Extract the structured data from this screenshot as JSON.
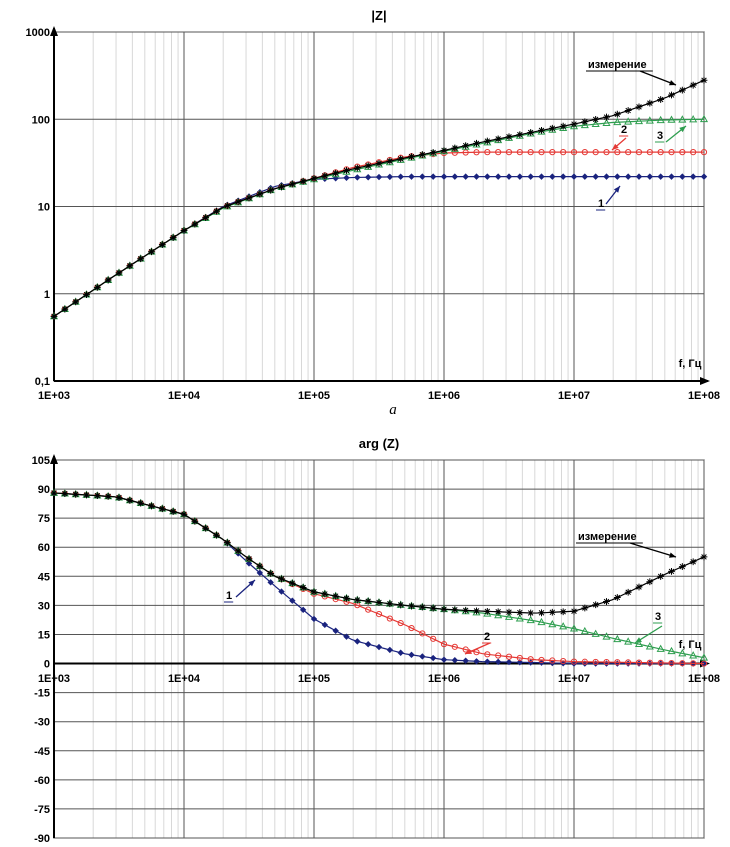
{
  "chart_data": [
    {
      "type": "line",
      "title": "|Z|",
      "xlabel": "f, Гц",
      "ylabel": "",
      "x_scale": "log",
      "y_scale": "log",
      "xlim": [
        1000,
        100000000
      ],
      "ylim": [
        0.1,
        1000
      ],
      "x_tick_labels": [
        "1E+03",
        "1E+04",
        "1E+05",
        "1E+06",
        "1E+07",
        "1E+08"
      ],
      "y_tick_labels": [
        "0,1",
        "1",
        "10",
        "100",
        "1000"
      ],
      "grid": true,
      "sublabel": "a",
      "series": [
        {
          "name": "измерение",
          "color": "#000000",
          "marker": "star",
          "x": [
            1000,
            3000,
            10000,
            20000,
            50000,
            100000,
            200000,
            500000,
            1000000,
            2000000,
            5000000,
            10000000,
            20000000,
            50000000,
            100000000
          ],
          "y": [
            0.55,
            1.65,
            5.3,
            9.8,
            16,
            21,
            27,
            36,
            44,
            55,
            72,
            88,
            110,
            175,
            280
          ]
        },
        {
          "name": "1",
          "color": "#1a237e",
          "marker": "diamond",
          "x": [
            1000,
            3000,
            10000,
            20000,
            50000,
            100000,
            200000,
            500000,
            1000000,
            10000000,
            100000000
          ],
          "y": [
            0.55,
            1.65,
            5.3,
            10,
            17,
            20.5,
            21.5,
            22,
            22,
            22,
            22
          ]
        },
        {
          "name": "2",
          "color": "#e53935",
          "marker": "circle",
          "x": [
            1000,
            3000,
            10000,
            20000,
            50000,
            100000,
            200000,
            500000,
            1000000,
            2000000,
            10000000,
            100000000
          ],
          "y": [
            0.55,
            1.65,
            5.3,
            9.8,
            16,
            21,
            28,
            37,
            41,
            42,
            42,
            42
          ]
        },
        {
          "name": "3",
          "color": "#2e9e4f",
          "marker": "triangle",
          "x": [
            1000,
            3000,
            10000,
            20000,
            50000,
            100000,
            200000,
            500000,
            1000000,
            2000000,
            5000000,
            10000000,
            20000000,
            50000000,
            100000000
          ],
          "y": [
            0.55,
            1.65,
            5.3,
            9.6,
            16,
            20.5,
            26,
            35,
            43,
            53,
            70,
            83,
            92,
            98,
            100
          ]
        }
      ],
      "annotations": [
        {
          "text": "измерение",
          "series": "измерение"
        },
        {
          "text": "1",
          "series": "1"
        },
        {
          "text": "2",
          "series": "2"
        },
        {
          "text": "3",
          "series": "3"
        }
      ]
    },
    {
      "type": "line",
      "title": "arg (Z)",
      "xlabel": "f, Гц",
      "ylabel": "",
      "x_scale": "log",
      "y_scale": "linear",
      "xlim": [
        1000,
        100000000
      ],
      "ylim": [
        -90,
        105
      ],
      "x_tick_labels": [
        "1E+03",
        "1E+04",
        "1E+05",
        "1E+06",
        "1E+07",
        "1E+08"
      ],
      "y_tick_labels": [
        "105",
        "90",
        "75",
        "60",
        "45",
        "30",
        "15",
        "0",
        "-15",
        "-30",
        "-45",
        "-60",
        "-75",
        "-90"
      ],
      "grid": true,
      "series": [
        {
          "name": "измерение",
          "color": "#000000",
          "marker": "star",
          "x": [
            1000,
            3000,
            10000,
            20000,
            30000,
            50000,
            100000,
            200000,
            500000,
            1000000,
            2000000,
            5000000,
            10000000,
            20000000,
            50000000,
            100000000
          ],
          "y": [
            88,
            86,
            77,
            64,
            55,
            45,
            37,
            33,
            30,
            28,
            27,
            26,
            27,
            33,
            46,
            55
          ]
        },
        {
          "name": "1",
          "color": "#1a237e",
          "marker": "diamond",
          "x": [
            1000,
            3000,
            10000,
            20000,
            30000,
            50000,
            100000,
            200000,
            500000,
            1000000,
            2000000,
            5000000,
            10000000,
            100000000
          ],
          "y": [
            88,
            86,
            77,
            64,
            53,
            40,
            23,
            12,
            5,
            2,
            1,
            0.5,
            0,
            0
          ]
        },
        {
          "name": "2",
          "color": "#e53935",
          "marker": "circle",
          "x": [
            1000,
            3000,
            10000,
            20000,
            30000,
            50000,
            100000,
            200000,
            500000,
            1000000,
            2000000,
            5000000,
            10000000,
            100000000
          ],
          "y": [
            88,
            86,
            77,
            64,
            55,
            45,
            36,
            31,
            20,
            10,
            5,
            2,
            1,
            0
          ]
        },
        {
          "name": "3",
          "color": "#2e9e4f",
          "marker": "triangle",
          "x": [
            1000,
            3000,
            10000,
            20000,
            30000,
            50000,
            100000,
            200000,
            500000,
            1000000,
            2000000,
            5000000,
            10000000,
            20000000,
            50000000,
            100000000
          ],
          "y": [
            88,
            86,
            77,
            64,
            55,
            45,
            37,
            33,
            30,
            28,
            26,
            22,
            18,
            13,
            7,
            3
          ]
        }
      ],
      "annotations": [
        {
          "text": "измерение",
          "series": "измерение"
        },
        {
          "text": "1",
          "series": "1"
        },
        {
          "text": "2",
          "series": "2"
        },
        {
          "text": "3",
          "series": "3"
        }
      ]
    }
  ]
}
